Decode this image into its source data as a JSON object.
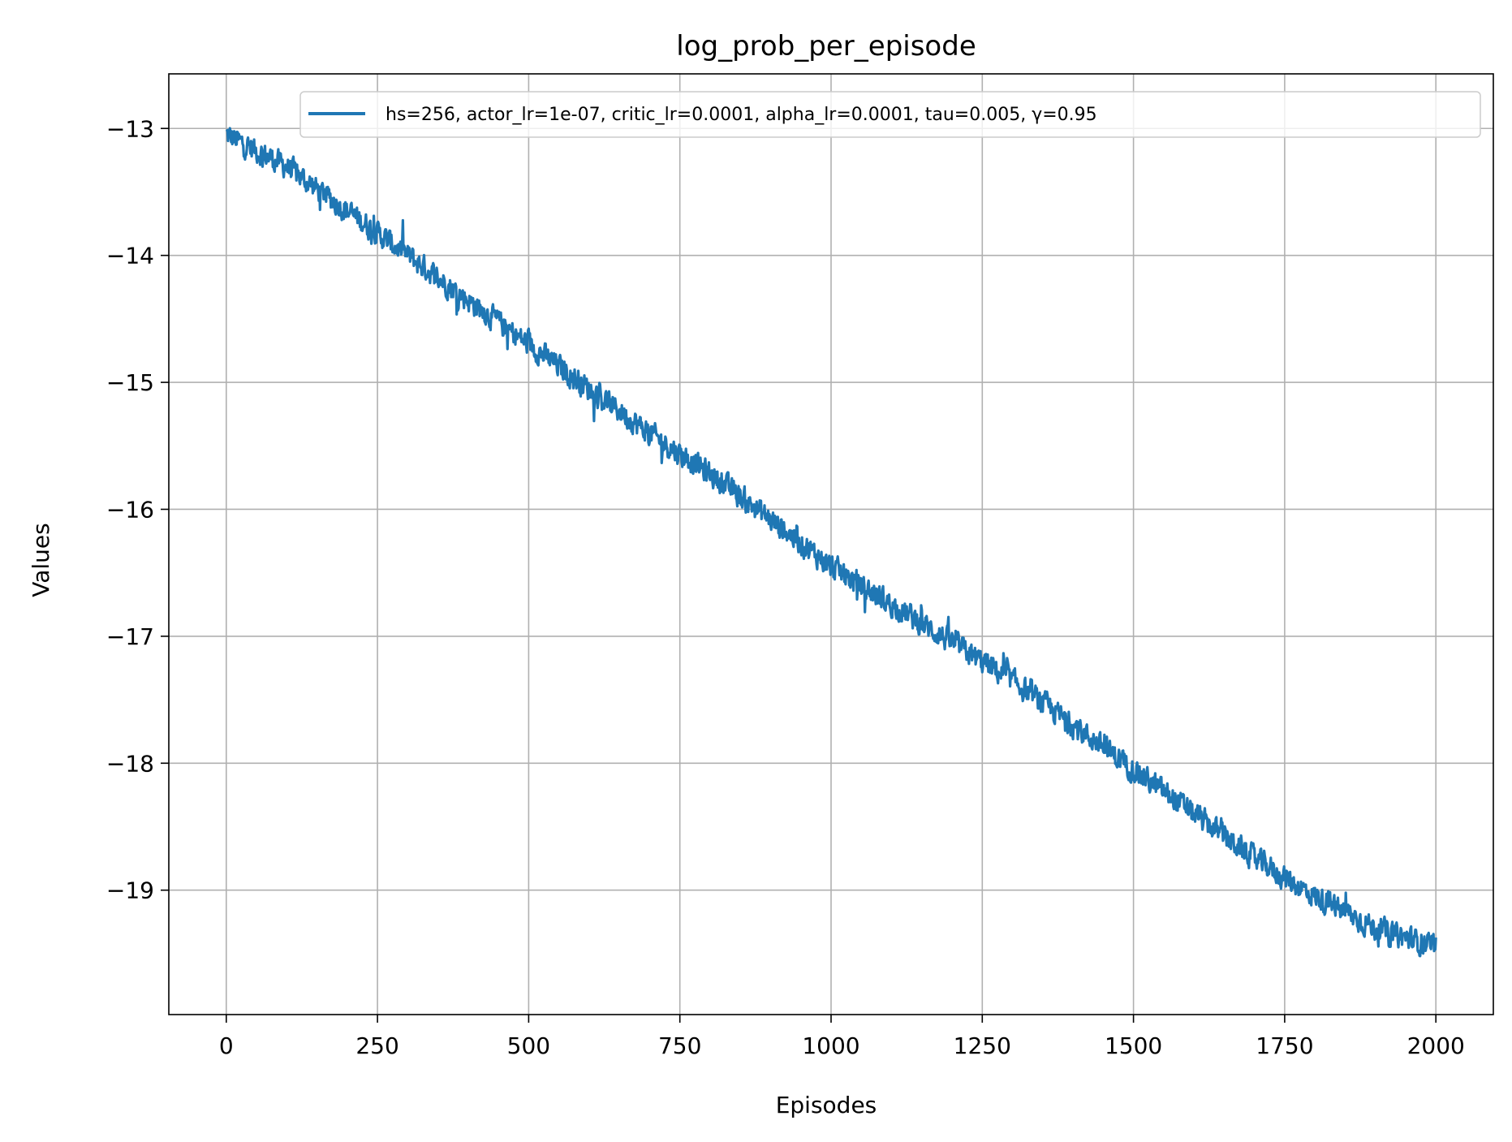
{
  "chart_data": {
    "type": "line",
    "title": "log_prob_per_episode",
    "xlabel": "Episodes",
    "ylabel": "Values",
    "xlim": [
      -95,
      2095
    ],
    "ylim": [
      -19.98,
      -12.57
    ],
    "xticks": [
      0,
      250,
      500,
      750,
      1000,
      1250,
      1500,
      1750,
      2000
    ],
    "xtick_labels": [
      "0",
      "250",
      "500",
      "750",
      "1000",
      "1250",
      "1500",
      "1750",
      "2000"
    ],
    "yticks": [
      -13,
      -14,
      -15,
      -16,
      -17,
      -18,
      -19
    ],
    "ytick_labels": [
      "−13",
      "−14",
      "−15",
      "−16",
      "−17",
      "−18",
      "−19"
    ],
    "grid": true,
    "legend_position": "top-right",
    "series": [
      {
        "name": "hs=256, actor_lr=1e-07, critic_lr=0.0001, alpha_lr=0.0001, tau=0.005, γ=0.95",
        "color": "#1f77b4",
        "x_start": 0,
        "x_end": 2000,
        "trend": [
          [
            0,
            -13.05
          ],
          [
            100,
            -13.3
          ],
          [
            200,
            -13.65
          ],
          [
            300,
            -14.0
          ],
          [
            400,
            -14.35
          ],
          [
            500,
            -14.7
          ],
          [
            600,
            -15.05
          ],
          [
            700,
            -15.4
          ],
          [
            800,
            -15.72
          ],
          [
            900,
            -16.08
          ],
          [
            1000,
            -16.45
          ],
          [
            1100,
            -16.75
          ],
          [
            1200,
            -17.05
          ],
          [
            1300,
            -17.35
          ],
          [
            1400,
            -17.7
          ],
          [
            1500,
            -18.05
          ],
          [
            1600,
            -18.4
          ],
          [
            1700,
            -18.75
          ],
          [
            1800,
            -19.05
          ],
          [
            1900,
            -19.3
          ],
          [
            2000,
            -19.45
          ]
        ],
        "noise_amplitude": 0.13
      }
    ]
  }
}
